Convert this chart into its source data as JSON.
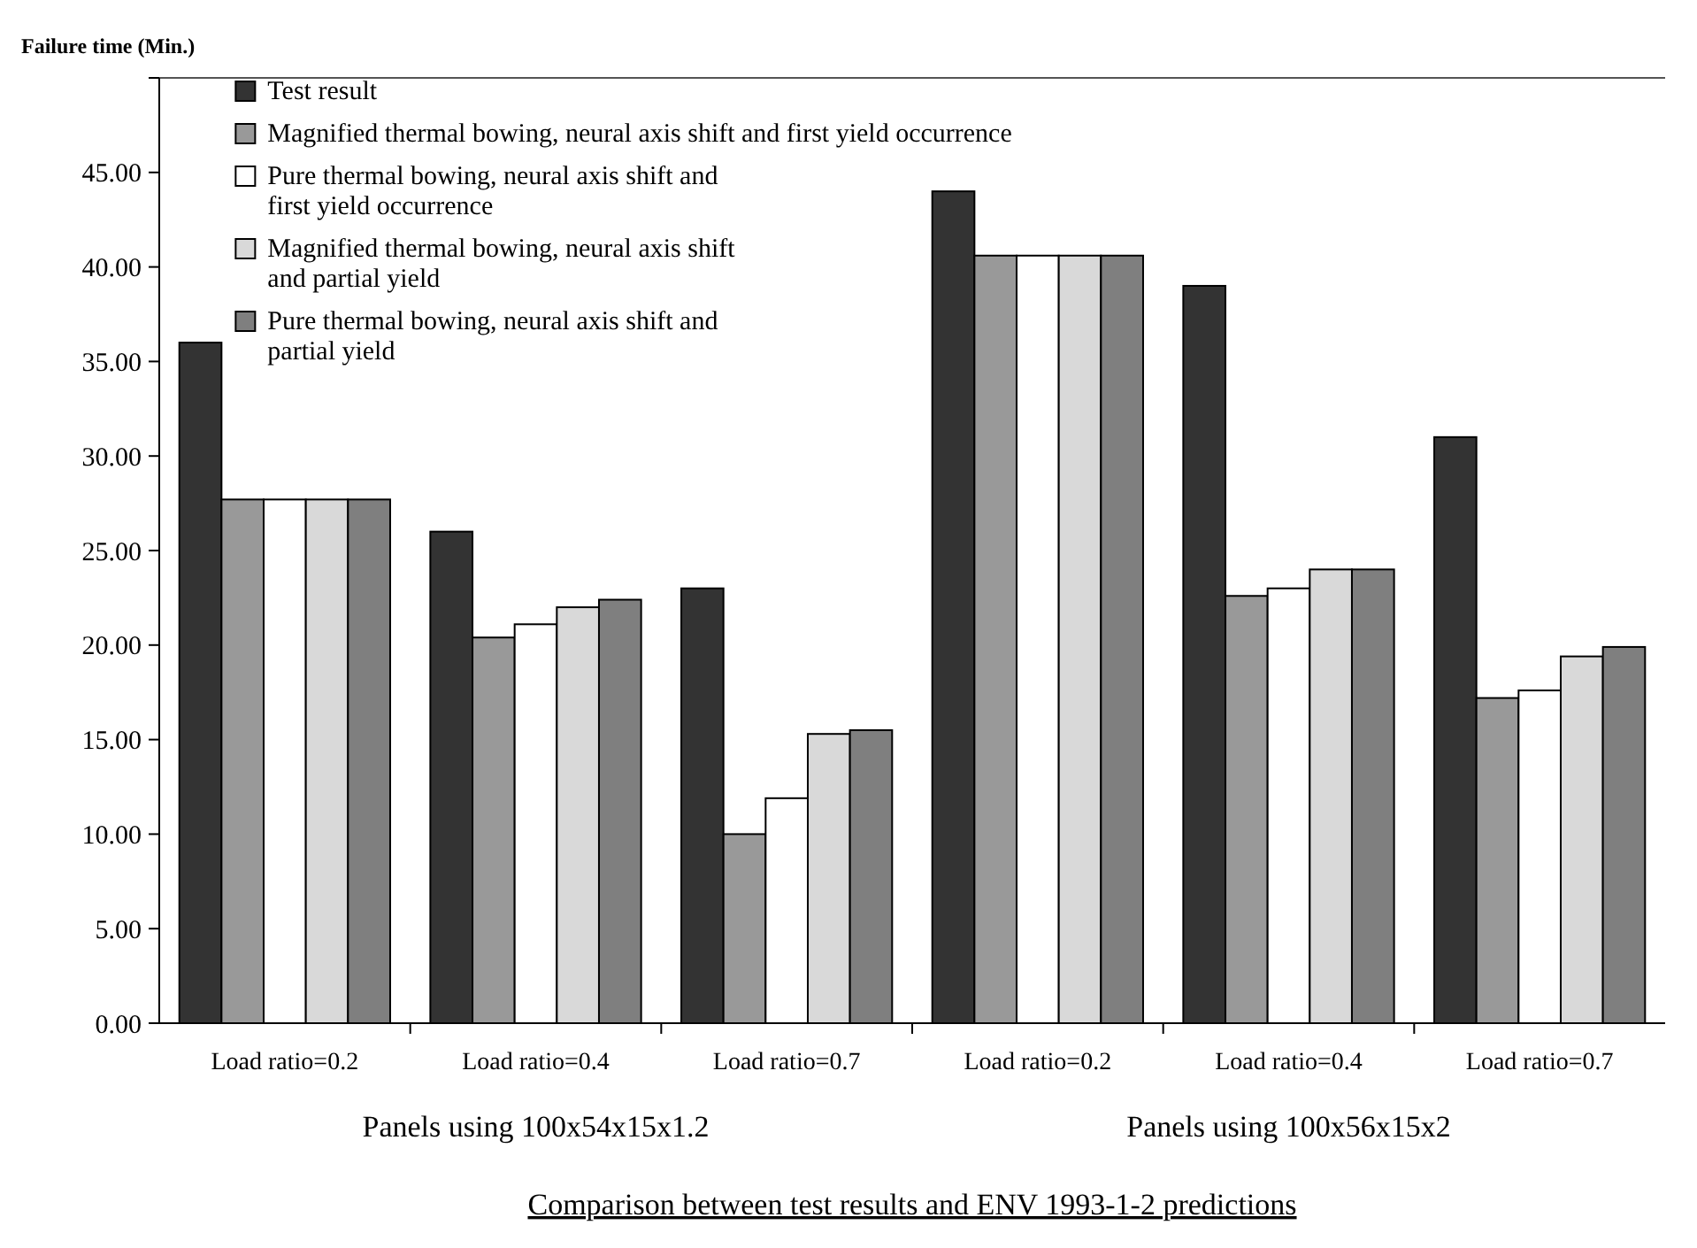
{
  "chart_data": {
    "type": "bar",
    "title": "Comparison between test results and ENV 1993-1-2 predictions",
    "ylabel": "Failure time (Min.)",
    "categories": [
      "Load ratio=0.2",
      "Load ratio=0.4",
      "Load ratio=0.7",
      "Load ratio=0.2",
      "Load ratio=0.4",
      "Load ratio=0.7"
    ],
    "series": [
      {
        "name": "Test result",
        "color": "#333333",
        "values": [
          36.0,
          26.0,
          23.0,
          44.0,
          39.0,
          31.0
        ]
      },
      {
        "name": "Magnified thermal bowing, neural axis shift and first  yield occurrence",
        "color": "#999999",
        "values": [
          27.7,
          20.4,
          10.0,
          40.6,
          22.6,
          17.2
        ]
      },
      {
        "name": "Pure thermal bowing, neural axis shift and first yield occurrence",
        "color": "#ffffff",
        "values": [
          27.7,
          21.1,
          11.9,
          40.6,
          23.0,
          17.6
        ]
      },
      {
        "name": "Magnified thermal bowing, neural axis shift and partial yield",
        "color": "#d9d9d9",
        "values": [
          27.7,
          22.0,
          15.3,
          40.6,
          24.0,
          19.4
        ]
      },
      {
        "name": "Pure thermal bowing, neural axis shift and partial yield",
        "color": "#7f7f7f",
        "values": [
          27.7,
          22.4,
          15.5,
          40.6,
          24.0,
          19.9
        ]
      }
    ],
    "ylim": [
      0,
      50
    ],
    "yticks": [
      {
        "value": 0,
        "label": "0.00"
      },
      {
        "value": 5,
        "label": "5.00"
      },
      {
        "value": 10,
        "label": "10.00"
      },
      {
        "value": 15,
        "label": "15.00"
      },
      {
        "value": 20,
        "label": "20.00"
      },
      {
        "value": 25,
        "label": "25.00"
      },
      {
        "value": 30,
        "label": "30.00"
      },
      {
        "value": 35,
        "label": "35.00"
      },
      {
        "value": 40,
        "label": "40.00"
      },
      {
        "value": 45,
        "label": "45.00"
      },
      {
        "value": 50,
        "label": null
      }
    ],
    "grid": false,
    "legend": "top left",
    "annotations": [
      "Panels using 100x54x15x1.2",
      "Panels using 100x56x15x2"
    ]
  }
}
